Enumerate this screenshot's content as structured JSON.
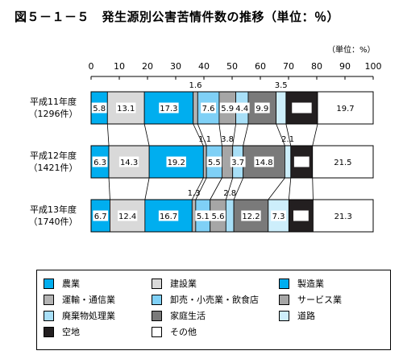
{
  "title": "図５－１－５　発生源別公害苦情件数の推移（単位：％）",
  "unit_label": "（単位：%）",
  "chart_data": {
    "type": "bar",
    "stacked": true,
    "orientation": "horizontal",
    "xlim": [
      0,
      100
    ],
    "xticks": [
      0,
      10,
      20,
      30,
      40,
      50,
      60,
      70,
      80,
      90,
      100
    ],
    "categories": [
      {
        "line1": "平成11年度",
        "line2": "（1296件）"
      },
      {
        "line1": "平成12年度",
        "line2": "（1421件）"
      },
      {
        "line1": "平成13年度",
        "line2": "（1740件）"
      }
    ],
    "series": [
      {
        "name": "農業",
        "color": "#00aeef",
        "values": [
          5.8,
          6.3,
          6.7
        ]
      },
      {
        "name": "建設業",
        "color": "#d9d9d9",
        "values": [
          13.1,
          14.3,
          12.4
        ]
      },
      {
        "name": "製造業",
        "color": "#00aeef",
        "values": [
          17.3,
          19.2,
          16.7
        ]
      },
      {
        "name": "運輸・通信業",
        "color": "#b3b3b3",
        "values": [
          1.6,
          1.1,
          1.3
        ]
      },
      {
        "name": "卸売・小売業・飲食店",
        "color": "#7fd0f6",
        "values": [
          7.6,
          5.5,
          5.1
        ]
      },
      {
        "name": "サービス業",
        "color": "#a6a6a6",
        "values": [
          5.9,
          3.8,
          5.6
        ]
      },
      {
        "name": "廃棄物処理業",
        "color": "#a8dff7",
        "values": [
          4.4,
          3.7,
          2.8
        ]
      },
      {
        "name": "家庭生活",
        "color": "#7a7a7a",
        "values": [
          9.9,
          14.8,
          12.2
        ]
      },
      {
        "name": "道路",
        "color": "#cdeefb",
        "values": [
          3.5,
          2.1,
          7.3
        ]
      },
      {
        "name": "空地",
        "color": "#231f20",
        "values": [
          11.2,
          7.7,
          8.6
        ]
      },
      {
        "name": "その他",
        "color": "#ffffff",
        "values": [
          19.7,
          21.5,
          21.3
        ]
      }
    ],
    "data_labels": [
      [
        "5.8",
        "13.1",
        "17.3",
        "1.6",
        "7.6",
        "5.9",
        "4.4",
        "9.9",
        "3.5",
        "11.2",
        "19.7"
      ],
      [
        "6.3",
        "14.3",
        "19.2",
        "1.1",
        "5.5",
        "3.8",
        "3.7",
        "14.8",
        "2.1",
        "7.7",
        "21.5"
      ],
      [
        "6.7",
        "12.4",
        "16.7",
        "1.3",
        "5.1",
        "5.6",
        "2.8",
        "12.2",
        "7.3",
        "8.6",
        "21.3"
      ]
    ],
    "legend_position": "bottom"
  }
}
